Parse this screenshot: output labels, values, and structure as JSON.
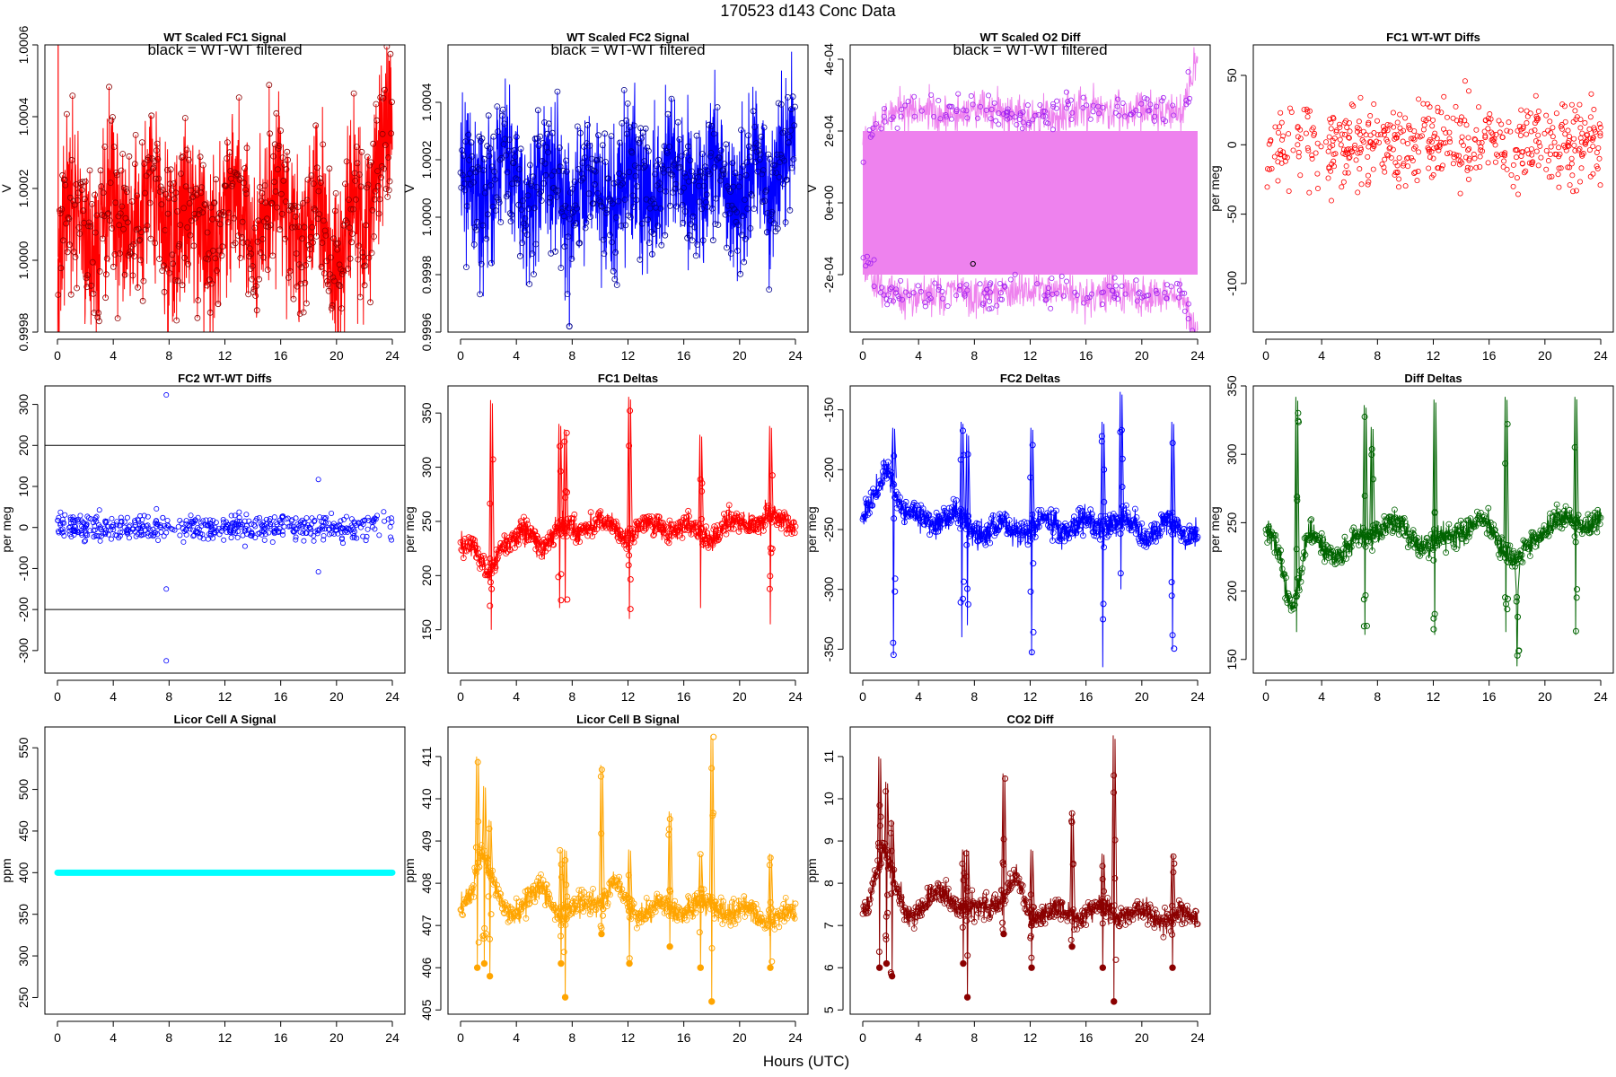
{
  "figure": {
    "title": "170523   d143   Conc Data",
    "xlabel": "Hours (UTC)"
  },
  "chart_data": [
    {
      "id": "p1",
      "type": "line",
      "title": "WT Scaled FC1 Signal",
      "ylabel": "V",
      "annotation": "black = WT-WT filtered",
      "color": "#ff0000",
      "point_color": "#8b0000",
      "xlim": [
        0,
        24
      ],
      "ylim": [
        0.9998,
        1.0006
      ],
      "xticks": [
        0,
        4,
        8,
        12,
        16,
        20,
        24
      ],
      "yticks": [
        0.9998,
        1.0,
        1.0002,
        1.0004,
        1.0006
      ],
      "ytick_labels": [
        "0.9998",
        "1.0000",
        "1.0002",
        "1.0004",
        "1.0006"
      ],
      "profile": {
        "x": [
          0,
          1,
          2,
          3,
          4,
          6,
          8,
          10,
          12,
          14,
          16,
          18,
          20,
          21,
          22,
          23,
          23.5,
          24
        ],
        "y": [
          1.0,
          1.00009,
          1.00012,
          1.00005,
          1.00012,
          1.00011,
          1.00014,
          1.00008,
          1.00013,
          1.00014,
          1.00015,
          1.00011,
          1.00004,
          1.00014,
          1.00001,
          1.00033,
          1.00046,
          1.0004
        ],
        "band": 0.00012
      }
    },
    {
      "id": "p2",
      "type": "line",
      "title": "WT Scaled FC2 Signal",
      "ylabel": "V",
      "annotation": "black = WT-WT filtered",
      "color": "#0000ff",
      "point_color": "#00008b",
      "xlim": [
        0,
        24
      ],
      "ylim": [
        0.9996,
        1.0006
      ],
      "xticks": [
        0,
        4,
        8,
        12,
        16,
        20,
        24
      ],
      "yticks": [
        0.9996,
        0.9998,
        1.0,
        1.0002,
        1.0004
      ],
      "ytick_labels": [
        "0.9996",
        "0.9998",
        "1.0000",
        "1.0002",
        "1.0004"
      ],
      "profile": {
        "x": [
          0,
          2,
          4,
          6,
          8,
          10,
          12,
          14,
          16,
          18,
          20,
          22,
          23,
          24
        ],
        "y": [
          1.00008,
          1.00014,
          1.00012,
          1.00011,
          1.0001,
          1.00008,
          1.00012,
          1.00013,
          1.00013,
          1.00011,
          1.00014,
          1.00007,
          1.00032,
          1.00026
        ],
        "band": 0.00013
      }
    },
    {
      "id": "p3",
      "type": "band",
      "title": "WT Scaled O2 Diff",
      "ylabel": "V",
      "annotation": "black = WT-WT filtered",
      "color": "#ee82ee",
      "point_color": "#a020f0",
      "xlim": [
        0,
        24
      ],
      "ylim": [
        -0.00036,
        0.00044
      ],
      "xticks": [
        0,
        4,
        8,
        12,
        16,
        20,
        24
      ],
      "yticks": [
        -0.0002,
        0.0,
        0.0002,
        0.0004
      ],
      "ytick_labels": [
        "-2e-04",
        "0e+00",
        "2e-04",
        "4e-04"
      ],
      "profile": {
        "x": [
          0,
          1,
          2,
          4,
          6,
          8,
          10,
          12,
          14,
          16,
          18,
          20,
          22,
          23,
          24
        ],
        "y": [
          0.00015,
          0.00022,
          0.00025,
          0.00026,
          0.00025,
          0.00026,
          0.00025,
          0.00024,
          0.00025,
          0.00026,
          0.00025,
          0.00026,
          0.00025,
          0.00026,
          0.0004
        ],
        "band": 3e-05
      }
    },
    {
      "id": "p4",
      "type": "scatter",
      "title": "FC1 WT-WT Diffs",
      "ylabel": "per meg",
      "color": "#ff0000",
      "xlim": [
        0,
        24
      ],
      "ylim": [
        -135,
        72
      ],
      "xticks": [
        0,
        4,
        8,
        12,
        16,
        20,
        24
      ],
      "yticks": [
        -100,
        -50,
        0,
        50
      ],
      "ytick_labels": [
        "-100",
        "-50",
        "0",
        "50"
      ],
      "mean": 0,
      "sd": 22,
      "n": 520,
      "seed": 11
    },
    {
      "id": "p5",
      "type": "scatter",
      "title": "FC2 WT-WT Diffs",
      "ylabel": "per meg",
      "color": "#0000ff",
      "xlim": [
        0,
        24
      ],
      "ylim": [
        -355,
        345
      ],
      "xticks": [
        0,
        4,
        8,
        12,
        16,
        20,
        24
      ],
      "yticks": [
        -300,
        -200,
        -100,
        0,
        100,
        200,
        300
      ],
      "ytick_labels": [
        "-300",
        "-200",
        "-100",
        "0",
        "100",
        "200",
        "300"
      ],
      "hlines": [
        200,
        -200
      ],
      "mean": 0,
      "sd": 22,
      "n": 520,
      "seed": 23,
      "outliers": {
        "x": [
          7.8,
          7.8,
          7.8,
          18.7,
          18.7
        ],
        "y": [
          323,
          -325,
          -150,
          117,
          -108
        ]
      }
    },
    {
      "id": "p6",
      "type": "line",
      "title": "FC1 Deltas",
      "ylabel": "per meg",
      "color": "#ff0000",
      "xlim": [
        0,
        24
      ],
      "ylim": [
        110,
        375
      ],
      "xticks": [
        0,
        4,
        8,
        12,
        16,
        20,
        24
      ],
      "yticks": [
        150,
        200,
        250,
        300,
        350
      ],
      "ytick_labels": [
        "150",
        "200",
        "250",
        "300",
        "350"
      ],
      "profile": {
        "x": [
          0,
          1,
          1.5,
          2,
          3,
          4,
          5,
          6,
          7,
          8,
          10,
          12,
          14,
          16,
          18,
          20,
          22,
          24
        ],
        "y": [
          238,
          220,
          205,
          200,
          235,
          230,
          240,
          232,
          240,
          245,
          248,
          238,
          248,
          242,
          238,
          248,
          250,
          252
        ],
        "band": 10
      },
      "spikes": {
        "x": [
          2.2,
          7.1,
          7.5,
          12.1,
          17.2,
          22.2
        ],
        "hi": [
          362,
          340,
          335,
          365,
          330,
          338
        ],
        "lo": [
          150,
          170,
          175,
          160,
          170,
          155
        ]
      }
    },
    {
      "id": "p7",
      "type": "line",
      "title": "FC2 Deltas",
      "ylabel": "per meg",
      "color": "#0000ff",
      "xlim": [
        0,
        24
      ],
      "ylim": [
        -370,
        -130
      ],
      "xticks": [
        0,
        4,
        8,
        12,
        16,
        20,
        24
      ],
      "yticks": [
        -350,
        -300,
        -250,
        -200,
        -150
      ],
      "ytick_labels": [
        "-350",
        "-300",
        "-250",
        "-200",
        "-150"
      ],
      "profile": {
        "x": [
          0,
          1,
          1.5,
          2,
          3,
          4,
          6,
          8,
          10,
          12,
          14,
          16,
          18,
          20,
          22,
          24
        ],
        "y": [
          -240,
          -225,
          -205,
          -200,
          -235,
          -245,
          -238,
          -250,
          -250,
          -248,
          -245,
          -248,
          -242,
          -250,
          -250,
          -250
        ],
        "band": 10
      },
      "spikes": {
        "x": [
          2.2,
          7.1,
          7.5,
          12.1,
          17.2,
          18.5,
          22.2
        ],
        "hi": [
          -165,
          -160,
          -170,
          -165,
          -160,
          -135,
          -160
        ],
        "lo": [
          -355,
          -340,
          -330,
          -355,
          -365,
          -300,
          -350
        ]
      }
    },
    {
      "id": "p8",
      "type": "line",
      "title": "Diff Deltas",
      "ylabel": "per meg",
      "color": "#006400",
      "xlim": [
        0,
        24
      ],
      "ylim": [
        140,
        350
      ],
      "xticks": [
        0,
        4,
        8,
        12,
        16,
        20,
        24
      ],
      "yticks": [
        150,
        200,
        250,
        300,
        350
      ],
      "ytick_labels": [
        "150",
        "200",
        "250",
        "300",
        "350"
      ],
      "profile": {
        "x": [
          0,
          1,
          1.5,
          2,
          3,
          4,
          6,
          8,
          10,
          12,
          14,
          16,
          18,
          20,
          22,
          24
        ],
        "y": [
          240,
          225,
          200,
          190,
          238,
          232,
          230,
          248,
          245,
          230,
          248,
          248,
          220,
          250,
          250,
          250
        ],
        "band": 8
      },
      "spikes": {
        "x": [
          2.2,
          7.1,
          7.6,
          12.1,
          17.2,
          18.0,
          22.2
        ],
        "hi": [
          342,
          336,
          320,
          340,
          342,
          200,
          342
        ],
        "lo": [
          170,
          168,
          230,
          168,
          170,
          145,
          168
        ]
      }
    },
    {
      "id": "p9",
      "type": "flat",
      "title": "Licor Cell A Signal",
      "ylabel": "ppm",
      "color": "#00ffff",
      "xlim": [
        0,
        24
      ],
      "ylim": [
        230,
        575
      ],
      "xticks": [
        0,
        4,
        8,
        12,
        16,
        20,
        24
      ],
      "yticks": [
        250,
        300,
        350,
        400,
        450,
        500,
        550
      ],
      "ytick_labels": [
        "250",
        "300",
        "350",
        "400",
        "450",
        "500",
        "550"
      ],
      "value": 400
    },
    {
      "id": "p10",
      "type": "line",
      "title": "Licor Cell B Signal",
      "ylabel": "ppm",
      "color": "#ffa500",
      "xlim": [
        0,
        24
      ],
      "ylim": [
        404.9,
        411.7
      ],
      "xticks": [
        0,
        4,
        8,
        12,
        16,
        20,
        24
      ],
      "yticks": [
        405,
        406,
        407,
        408,
        409,
        410,
        411
      ],
      "ytick_labels": [
        "405",
        "406",
        "407",
        "408",
        "409",
        "410",
        "411"
      ],
      "profile": {
        "x": [
          0,
          0.5,
          1,
          1.5,
          2,
          3,
          4,
          5,
          6,
          7,
          8,
          10,
          11,
          12,
          14,
          16,
          18,
          20,
          22,
          24
        ],
        "y": [
          407.4,
          407.7,
          408.2,
          408.8,
          408.2,
          407.4,
          407.4,
          407.6,
          407.8,
          407.4,
          407.3,
          407.7,
          408.0,
          407.4,
          407.4,
          407.4,
          407.5,
          407.3,
          407.2,
          407.2
        ],
        "band": 0.25
      },
      "spikes": {
        "x": [
          1.2,
          1.7,
          2.1,
          7.2,
          7.5,
          10.1,
          12.1,
          15.0,
          17.2,
          18.0,
          22.2
        ],
        "hi": [
          411.0,
          410.3,
          409.5,
          408.8,
          408.8,
          410.8,
          408.8,
          409.7,
          408.7,
          411.5,
          408.7
        ],
        "lo": [
          406.0,
          406.1,
          405.8,
          406.1,
          405.3,
          406.8,
          406.1,
          406.5,
          406.0,
          405.2,
          406.0
        ]
      }
    },
    {
      "id": "p11",
      "type": "line",
      "title": "CO2 Diff",
      "ylabel": "ppm",
      "color": "#8b0000",
      "xlim": [
        0,
        24
      ],
      "ylim": [
        4.9,
        11.7
      ],
      "xticks": [
        0,
        4,
        8,
        12,
        16,
        20,
        24
      ],
      "yticks": [
        5,
        6,
        7,
        8,
        9,
        10,
        11
      ],
      "ytick_labels": [
        "5",
        "6",
        "7",
        "8",
        "9",
        "10",
        "11"
      ],
      "profile": {
        "x": [
          0,
          0.5,
          1,
          1.5,
          2,
          3,
          4,
          5,
          6,
          7,
          8,
          10,
          11,
          12,
          14,
          16,
          18,
          20,
          22,
          24
        ],
        "y": [
          7.4,
          7.8,
          8.3,
          8.8,
          8.2,
          7.4,
          7.4,
          7.6,
          7.8,
          7.4,
          7.3,
          7.7,
          8.0,
          7.3,
          7.3,
          7.3,
          7.4,
          7.2,
          7.2,
          7.2
        ],
        "band": 0.25
      },
      "spikes": {
        "x": [
          1.2,
          1.7,
          2.1,
          7.2,
          7.5,
          10.1,
          12.1,
          15.0,
          17.2,
          18.0,
          22.2
        ],
        "hi": [
          11.0,
          10.4,
          9.5,
          8.8,
          8.8,
          10.6,
          8.8,
          9.7,
          8.7,
          11.5,
          8.7
        ],
        "lo": [
          6.0,
          6.1,
          5.8,
          6.1,
          5.3,
          6.8,
          6.0,
          6.5,
          6.0,
          5.2,
          6.0
        ]
      }
    }
  ]
}
